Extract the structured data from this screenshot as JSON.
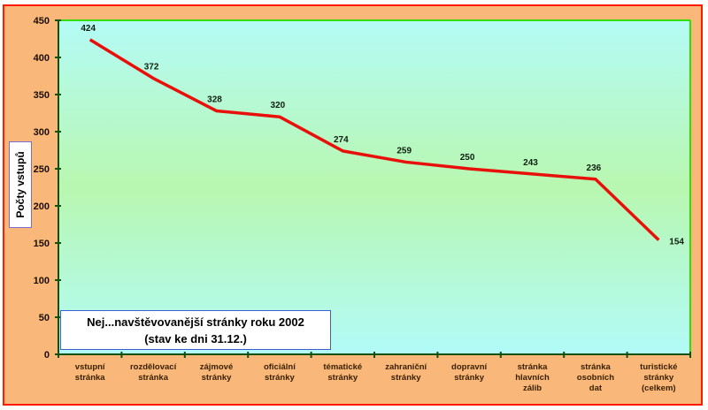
{
  "chart_data": {
    "type": "line",
    "title": "Nej...navštěvovanější stránky roku 2002",
    "subtitle": "(stav ke dni 31.12.)",
    "xlabel": "",
    "ylabel": "Počty vstupů",
    "ylim": [
      0,
      450
    ],
    "yticks": [
      0,
      50,
      100,
      150,
      200,
      250,
      300,
      350,
      400,
      450
    ],
    "categories": [
      [
        "vstupní",
        "stránka"
      ],
      [
        "rozdělovací",
        "stránka"
      ],
      [
        "zájmové",
        "stránky"
      ],
      [
        "oficiální",
        "stránky"
      ],
      [
        "tématické",
        "stránky"
      ],
      [
        "zahraniční",
        "stránky"
      ],
      [
        "dopravní",
        "stránky"
      ],
      [
        "stránka",
        "hlavních",
        "zálib"
      ],
      [
        "stránka",
        "osobních",
        "dat"
      ],
      [
        "turistické",
        "stránky",
        "(celkem)"
      ]
    ],
    "series": [
      {
        "name": "Počty vstupů",
        "values": [
          424,
          372,
          328,
          320,
          274,
          259,
          250,
          243,
          236,
          154
        ],
        "color": "#e8100a"
      }
    ],
    "grid": false,
    "legend": "none"
  }
}
